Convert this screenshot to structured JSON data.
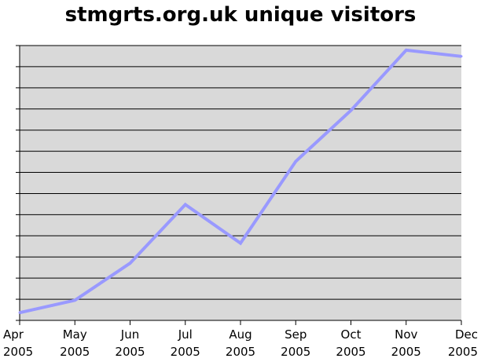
{
  "chart_data": {
    "type": "line",
    "title": "stmgrts.org.uk unique visitors",
    "xlabel": "",
    "ylabel": "",
    "categories": [
      [
        "Apr",
        "2005"
      ],
      [
        "May",
        "2005"
      ],
      [
        "Jun",
        "2005"
      ],
      [
        "Jul",
        "2005"
      ],
      [
        "Aug",
        "2005"
      ],
      [
        "Sep",
        "2005"
      ],
      [
        "Oct",
        "2005"
      ],
      [
        "Nov",
        "2005"
      ],
      [
        "Dec",
        "2005"
      ]
    ],
    "series": [
      {
        "values": [
          0.5,
          1.3,
          3.7,
          7.5,
          5.0,
          10.3,
          13.6,
          17.5,
          17.1
        ]
      }
    ],
    "ylim": [
      0,
      17.8
    ],
    "y_tick_labels_shown": false,
    "grid": true,
    "legend": "none",
    "colors": {
      "plot_background": "#d9d9d9",
      "grid": "#000000",
      "line": "#9999ff"
    }
  }
}
